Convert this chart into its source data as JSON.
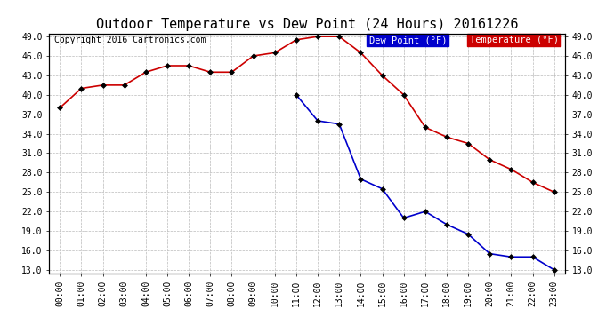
{
  "title": "Outdoor Temperature vs Dew Point (24 Hours) 20161226",
  "copyright": "Copyright 2016 Cartronics.com",
  "hours": [
    "00:00",
    "01:00",
    "02:00",
    "03:00",
    "04:00",
    "05:00",
    "06:00",
    "07:00",
    "08:00",
    "09:00",
    "10:00",
    "11:00",
    "12:00",
    "13:00",
    "14:00",
    "15:00",
    "16:00",
    "17:00",
    "18:00",
    "19:00",
    "20:00",
    "21:00",
    "22:00",
    "23:00"
  ],
  "temperature": [
    38.0,
    41.0,
    41.5,
    41.5,
    43.5,
    44.5,
    44.5,
    43.5,
    43.5,
    46.0,
    46.5,
    48.5,
    49.0,
    49.0,
    46.5,
    43.0,
    40.0,
    35.0,
    33.5,
    32.5,
    30.0,
    28.5,
    26.5,
    25.0
  ],
  "dew_point": [
    null,
    null,
    null,
    null,
    null,
    null,
    null,
    null,
    null,
    null,
    null,
    40.0,
    36.0,
    35.5,
    27.0,
    25.5,
    21.0,
    22.0,
    20.0,
    18.5,
    15.5,
    15.0,
    15.0,
    13.0
  ],
  "temp_color": "#cc0000",
  "dew_color": "#0000cc",
  "bg_color": "#ffffff",
  "grid_color": "#bbbbbb",
  "ylim_min": 13.0,
  "ylim_max": 49.0,
  "yticks": [
    13.0,
    16.0,
    19.0,
    22.0,
    25.0,
    28.0,
    31.0,
    34.0,
    37.0,
    40.0,
    43.0,
    46.0,
    49.0
  ],
  "legend_dew_bg": "#0000cc",
  "legend_temp_bg": "#cc0000",
  "legend_text_color": "#ffffff",
  "title_fontsize": 11,
  "axis_fontsize": 7,
  "copyright_fontsize": 7
}
